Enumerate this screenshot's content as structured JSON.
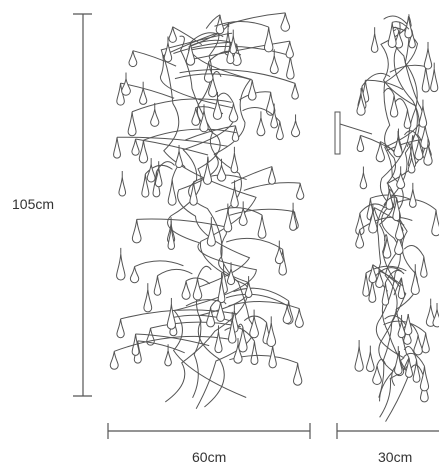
{
  "dimensions": {
    "height": "105cm",
    "width": "60cm",
    "depth": "30cm"
  },
  "views": [
    {
      "name": "front-view"
    },
    {
      "name": "side-view"
    }
  ],
  "colors": {
    "line": "#555555",
    "text": "#333333",
    "background": "#ffffff"
  }
}
